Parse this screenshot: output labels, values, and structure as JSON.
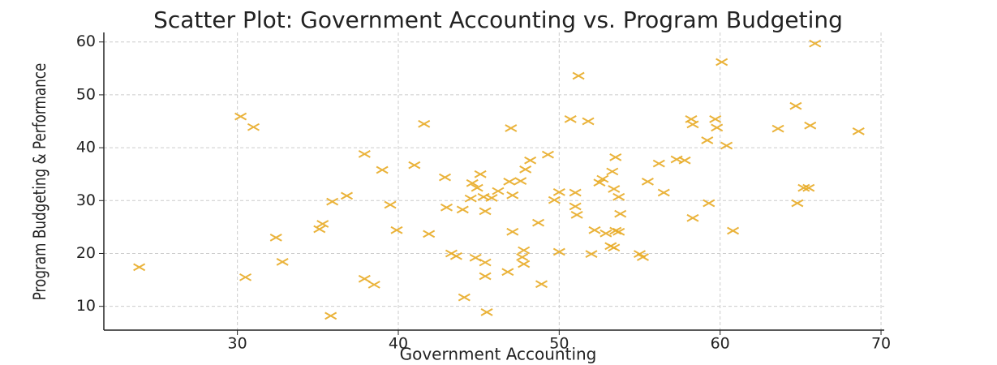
{
  "chart_data": {
    "type": "scatter",
    "title": "Scatter Plot: Government Accounting vs. Program Budgeting",
    "x_label": "Government Accounting",
    "y_label": "Program Budgeting & Performance",
    "color": "#e8ab26",
    "marker": "x",
    "grid": true,
    "xlim": [
      21.7,
      70.2
    ],
    "ylim": [
      5.5,
      61.8
    ],
    "xticks": [
      30,
      40,
      50,
      60,
      70
    ],
    "yticks": [
      10,
      20,
      30,
      40,
      50,
      60
    ],
    "x": [
      23.9,
      30.2,
      31.0,
      30.5,
      32.4,
      32.8,
      35.1,
      35.3,
      35.9,
      36.8,
      35.8,
      37.9,
      37.9,
      38.5,
      39.0,
      39.5,
      39.9,
      41.0,
      41.6,
      41.9,
      42.9,
      43.0,
      43.3,
      43.6,
      44.0,
      44.1,
      44.5,
      44.6,
      44.9,
      44.8,
      45.1,
      45.3,
      45.4,
      45.4,
      45.4,
      45.5,
      45.8,
      46.2,
      46.8,
      46.9,
      47.0,
      47.1,
      47.1,
      47.6,
      47.7,
      47.8,
      47.8,
      47.9,
      48.2,
      48.7,
      48.9,
      49.3,
      49.7,
      50.0,
      50.0,
      50.7,
      51.0,
      51.0,
      51.1,
      51.2,
      51.8,
      52.0,
      52.2,
      52.5,
      52.7,
      52.9,
      53.3,
      53.2,
      53.4,
      53.5,
      53.5,
      53.7,
      53.7,
      53.4,
      53.8,
      55.0,
      55.2,
      55.5,
      56.2,
      56.5,
      57.3,
      57.8,
      58.2,
      58.3,
      58.3,
      59.2,
      59.3,
      59.7,
      59.8,
      60.1,
      60.4,
      60.8,
      63.6,
      64.7,
      64.8,
      65.2,
      65.5,
      65.6,
      65.9,
      68.6
    ],
    "values": [
      17.4,
      45.9,
      43.9,
      15.5,
      23.0,
      18.4,
      24.6,
      25.6,
      29.8,
      30.9,
      8.2,
      38.8,
      15.2,
      14.1,
      35.8,
      29.2,
      24.4,
      36.7,
      44.5,
      23.7,
      34.4,
      28.7,
      20.0,
      19.5,
      28.3,
      11.7,
      30.4,
      33.3,
      32.4,
      19.2,
      35.0,
      30.7,
      18.3,
      28.0,
      15.7,
      8.9,
      30.5,
      31.8,
      16.5,
      33.6,
      43.7,
      31.0,
      24.1,
      33.7,
      19.3,
      18.0,
      20.6,
      35.9,
      37.6,
      25.8,
      14.2,
      38.7,
      30.1,
      31.6,
      20.3,
      45.4,
      31.5,
      28.9,
      27.3,
      53.6,
      45.0,
      19.9,
      24.4,
      33.4,
      34.1,
      23.8,
      35.5,
      21.4,
      21.1,
      38.2,
      24.3,
      24.1,
      30.7,
      32.2,
      27.5,
      19.9,
      19.3,
      33.6,
      37.0,
      31.5,
      37.8,
      37.6,
      45.4,
      44.4,
      26.7,
      41.4,
      29.5,
      45.4,
      43.8,
      56.2,
      40.4,
      24.3,
      43.6,
      47.9,
      29.5,
      32.4,
      32.4,
      44.2,
      59.7,
      43.1
    ]
  }
}
